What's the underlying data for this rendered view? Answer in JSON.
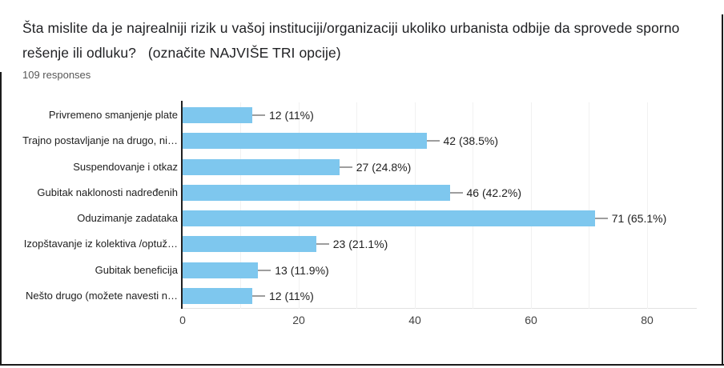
{
  "header": {
    "title": "Šta mislite da je najrealniji rizik u vašoj instituciji/organizaciji ukoliko urbanista odbije da sprovede sporno rešenje ili odluku?   (označite NAJVIŠE TRI opcije)",
    "responses": "109 responses"
  },
  "chart_data": {
    "type": "bar",
    "orientation": "horizontal",
    "categories": [
      "Privremeno smanjenje plate",
      "Trajno postavljanje na drugo, ni…",
      "Suspendovanje i otkaz",
      "Gubitak naklonosti nadređenih",
      "Oduzimanje zadataka",
      "Izopštavanje iz kolektiva /optuž…",
      "Gubitak beneficija",
      "Nešto drugo (možete navesti n…"
    ],
    "values": [
      12,
      42,
      27,
      46,
      71,
      23,
      13,
      12
    ],
    "value_labels": [
      "12 (11%)",
      "42 (38.5%)",
      "27 (24.8%)",
      "46 (42.2%)",
      "71 (65.1%)",
      "23 (21.1%)",
      "13 (11.9%)",
      "12 (11%)"
    ],
    "xlim": [
      0,
      80
    ],
    "xticks": [
      0,
      20,
      40,
      60,
      80
    ],
    "minor_grid_step": 10,
    "grid": true,
    "legend": "none",
    "bar_color": "#7EC7EE",
    "axis_color": "#212121",
    "grid_color": "#f1f1f1",
    "leader_color": "#9e9e9e"
  }
}
